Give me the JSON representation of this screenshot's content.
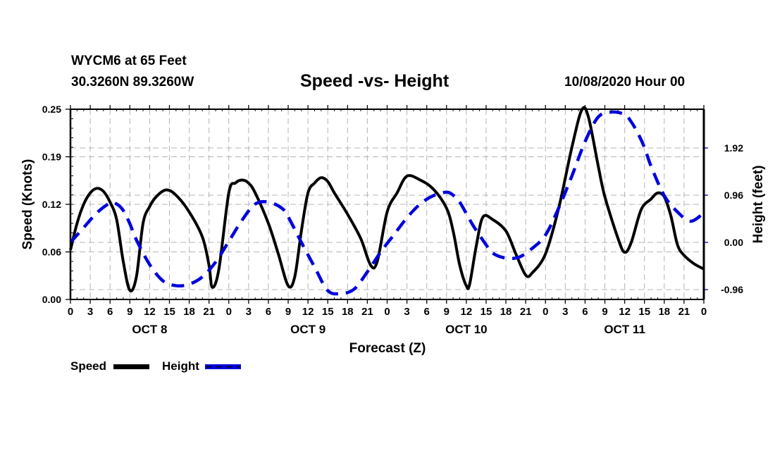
{
  "header": {
    "station": "WYCM6 at 65 Feet",
    "coordinates": "30.3260N 89.3260W",
    "title": "Speed -vs- Height",
    "datetime": "10/08/2020 Hour 00"
  },
  "chart_data": {
    "type": "line",
    "title": "Speed -vs- Height",
    "xlabel": "Forecast (Z)",
    "ylabel": "Speed (Knots)",
    "y2label": "Height (feet)",
    "xlim": [
      0,
      96
    ],
    "ylim": [
      0,
      0.25
    ],
    "y2lim": [
      -1.2,
      2.67
    ],
    "grid": true,
    "legend_position": "bottom-left",
    "x_tick_labels": [
      "0",
      "3",
      "6",
      "9",
      "12",
      "15",
      "18",
      "21",
      "0",
      "3",
      "6",
      "9",
      "12",
      "15",
      "18",
      "21",
      "0",
      "3",
      "6",
      "9",
      "12",
      "15",
      "18",
      "21",
      "0",
      "3",
      "6",
      "9",
      "12",
      "15",
      "18",
      "21",
      "0"
    ],
    "day_labels": [
      {
        "label": "OCT 8",
        "hour": 12
      },
      {
        "label": "OCT 9",
        "hour": 36
      },
      {
        "label": "OCT 10",
        "hour": 60
      },
      {
        "label": "OCT 11",
        "hour": 84
      }
    ],
    "y_ticks": [
      {
        "value": 0.0,
        "label": "0.00"
      },
      {
        "value": 0.0625,
        "label": "0.06"
      },
      {
        "value": 0.125,
        "label": "0.12"
      },
      {
        "value": 0.1875,
        "label": "0.19"
      },
      {
        "value": 0.25,
        "label": "0.25"
      }
    ],
    "y2_ticks": [
      {
        "value": -0.96,
        "label": "-0.96"
      },
      {
        "value": 0.0,
        "label": "0.00"
      },
      {
        "value": 0.96,
        "label": "0.96"
      },
      {
        "value": 1.92,
        "label": "1.92"
      }
    ],
    "series": [
      {
        "name": "Speed",
        "axis": "left",
        "color": "#000000",
        "style": "solid",
        "x": [
          0,
          1,
          2,
          3,
          4,
          5,
          6,
          7,
          8,
          9,
          10,
          11,
          12,
          13,
          14.5,
          16,
          18,
          20,
          21,
          21.5,
          22.5,
          24,
          25,
          26,
          27,
          28,
          30,
          31.5,
          33,
          34,
          35,
          36,
          37,
          38,
          39,
          40,
          42,
          44,
          45.5,
          46.5,
          48,
          49.5,
          51,
          53,
          55,
          57,
          58,
          59,
          60,
          60.5,
          61.5,
          62.5,
          64,
          66,
          67.5,
          69,
          70,
          72,
          74,
          76,
          77.5,
          78.5,
          80,
          81,
          83,
          84,
          85,
          86.5,
          88,
          89,
          90,
          91,
          92,
          93,
          94.5,
          96
        ],
        "values": [
          0.065,
          0.1,
          0.125,
          0.14,
          0.146,
          0.142,
          0.128,
          0.105,
          0.05,
          0.012,
          0.03,
          0.1,
          0.122,
          0.135,
          0.144,
          0.137,
          0.115,
          0.082,
          0.045,
          0.016,
          0.04,
          0.14,
          0.153,
          0.157,
          0.153,
          0.14,
          0.1,
          0.06,
          0.018,
          0.03,
          0.09,
          0.14,
          0.153,
          0.16,
          0.155,
          0.14,
          0.112,
          0.08,
          0.045,
          0.05,
          0.115,
          0.14,
          0.162,
          0.157,
          0.145,
          0.12,
          0.09,
          0.045,
          0.018,
          0.02,
          0.07,
          0.108,
          0.105,
          0.09,
          0.06,
          0.032,
          0.035,
          0.06,
          0.12,
          0.2,
          0.249,
          0.24,
          0.175,
          0.135,
          0.08,
          0.062,
          0.075,
          0.118,
          0.132,
          0.14,
          0.135,
          0.11,
          0.072,
          0.058,
          0.047,
          0.04
        ]
      },
      {
        "name": "Height",
        "axis": "right",
        "color": "#0000dd",
        "style": "dashed",
        "x": [
          0,
          2,
          4,
          6,
          7,
          8,
          9,
          10,
          12,
          14,
          16,
          18,
          20,
          22,
          24,
          26,
          28,
          30,
          32,
          33,
          35,
          37,
          39,
          41,
          43,
          45,
          47,
          49,
          51,
          53,
          55,
          57,
          58,
          59,
          61,
          63,
          64,
          66,
          68,
          70,
          72,
          74,
          76,
          78,
          80,
          82,
          84,
          85,
          86,
          87,
          88,
          90,
          92,
          94,
          96
        ],
        "values": [
          0.0,
          0.3,
          0.6,
          0.8,
          0.78,
          0.65,
          0.38,
          0.05,
          -0.45,
          -0.78,
          -0.88,
          -0.85,
          -0.7,
          -0.4,
          0.02,
          0.45,
          0.78,
          0.82,
          0.7,
          0.52,
          0.0,
          -0.5,
          -0.98,
          -1.04,
          -0.95,
          -0.6,
          -0.2,
          0.15,
          0.5,
          0.78,
          0.95,
          1.02,
          0.96,
          0.82,
          0.35,
          -0.05,
          -0.22,
          -0.32,
          -0.3,
          -0.12,
          0.15,
          0.7,
          1.35,
          2.05,
          2.55,
          2.65,
          2.6,
          2.45,
          2.22,
          1.93,
          1.55,
          0.95,
          0.62,
          0.43,
          0.6
        ]
      }
    ]
  },
  "legend": {
    "speed_label": "Speed",
    "height_label": "Height"
  }
}
